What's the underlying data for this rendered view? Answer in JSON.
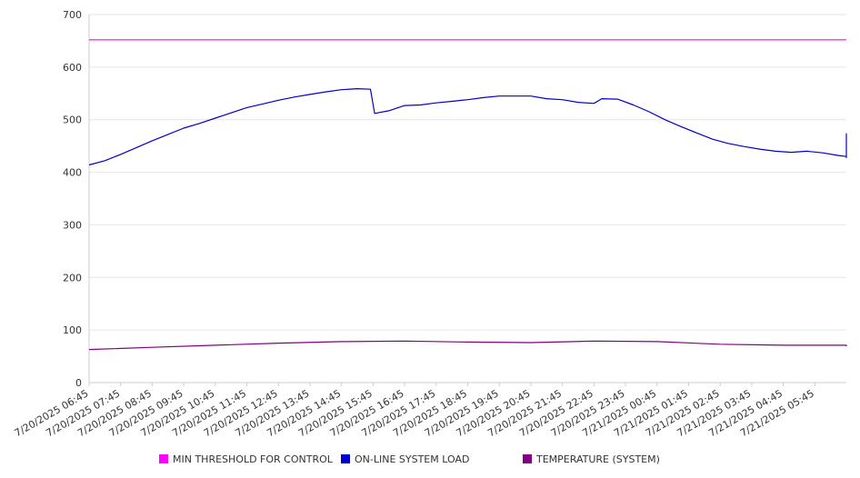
{
  "chart_data": {
    "type": "line",
    "title": "",
    "xlabel": "",
    "ylabel": "",
    "ylim": [
      0,
      700
    ],
    "yticks": [
      0,
      100,
      200,
      300,
      400,
      500,
      600,
      700
    ],
    "grid": true,
    "legend_position": "bottom",
    "x": [
      "7/20/2025 06:45",
      "7/20/2025 07:45",
      "7/20/2025 08:45",
      "7/20/2025 09:45",
      "7/20/2025 10:45",
      "7/20/2025 11:45",
      "7/20/2025 12:45",
      "7/20/2025 13:45",
      "7/20/2025 14:45",
      "7/20/2025 15:45",
      "7/20/2025 16:45",
      "7/20/2025 17:45",
      "7/20/2025 18:45",
      "7/20/2025 19:45",
      "7/20/2025 20:45",
      "7/20/2025 21:45",
      "7/20/2025 22:45",
      "7/20/2025 23:45",
      "7/21/2025 00:45",
      "7/21/2025 01:45",
      "7/21/2025 02:45",
      "7/21/2025 03:45",
      "7/21/2025 04:45",
      "7/21/2025 05:45"
    ],
    "x_end": "7/21/2025 06:45",
    "series": [
      {
        "name": "MIN THRESHOLD FOR CONTROL",
        "color": "#ff00ff",
        "points": [
          [
            "7/20/2025 06:45",
            652
          ],
          [
            "7/21/2025 06:45",
            652
          ]
        ]
      },
      {
        "name": "ON-LINE SYSTEM LOAD",
        "color": "#0000cc",
        "points": [
          [
            "7/20/2025 06:45",
            414
          ],
          [
            "7/20/2025 07:15",
            422
          ],
          [
            "7/20/2025 07:45",
            434
          ],
          [
            "7/20/2025 08:15",
            447
          ],
          [
            "7/20/2025 08:45",
            460
          ],
          [
            "7/20/2025 09:15",
            472
          ],
          [
            "7/20/2025 09:45",
            484
          ],
          [
            "7/20/2025 10:15",
            493
          ],
          [
            "7/20/2025 10:45",
            503
          ],
          [
            "7/20/2025 11:15",
            513
          ],
          [
            "7/20/2025 11:45",
            523
          ],
          [
            "7/20/2025 12:15",
            530
          ],
          [
            "7/20/2025 12:45",
            537
          ],
          [
            "7/20/2025 13:15",
            543
          ],
          [
            "7/20/2025 13:45",
            548
          ],
          [
            "7/20/2025 14:15",
            553
          ],
          [
            "7/20/2025 14:45",
            557
          ],
          [
            "7/20/2025 15:15",
            559
          ],
          [
            "7/20/2025 15:40",
            558
          ],
          [
            "7/20/2025 15:48",
            512
          ],
          [
            "7/20/2025 16:15",
            517
          ],
          [
            "7/20/2025 16:45",
            527
          ],
          [
            "7/20/2025 17:15",
            528
          ],
          [
            "7/20/2025 17:45",
            532
          ],
          [
            "7/20/2025 18:15",
            535
          ],
          [
            "7/20/2025 18:45",
            538
          ],
          [
            "7/20/2025 19:15",
            542
          ],
          [
            "7/20/2025 19:45",
            545
          ],
          [
            "7/20/2025 20:15",
            545
          ],
          [
            "7/20/2025 20:45",
            545
          ],
          [
            "7/20/2025 21:15",
            540
          ],
          [
            "7/20/2025 21:45",
            538
          ],
          [
            "7/20/2025 22:15",
            533
          ],
          [
            "7/20/2025 22:45",
            531
          ],
          [
            "7/20/2025 23:00",
            540
          ],
          [
            "7/20/2025 23:30",
            539
          ],
          [
            "7/21/2025 00:00",
            528
          ],
          [
            "7/21/2025 00:30",
            515
          ],
          [
            "7/21/2025 01:00",
            500
          ],
          [
            "7/21/2025 01:30",
            487
          ],
          [
            "7/21/2025 02:00",
            475
          ],
          [
            "7/21/2025 02:30",
            463
          ],
          [
            "7/21/2025 03:00",
            455
          ],
          [
            "7/21/2025 03:30",
            449
          ],
          [
            "7/21/2025 04:00",
            444
          ],
          [
            "7/21/2025 04:30",
            440
          ],
          [
            "7/21/2025 05:00",
            438
          ],
          [
            "7/21/2025 05:30",
            440
          ],
          [
            "7/21/2025 06:00",
            437
          ],
          [
            "7/21/2025 06:30",
            432
          ],
          [
            "7/21/2025 07:00",
            430
          ],
          [
            "7/21/2025 07:30",
            428
          ],
          [
            "7/21/2025 08:00",
            428
          ],
          [
            "7/21/2025 08:30",
            430
          ],
          [
            "7/21/2025 09:00",
            433
          ],
          [
            "7/21/2025 09:30",
            440
          ],
          [
            "7/21/2025 10:00",
            448
          ],
          [
            "7/21/2025 10:30",
            460
          ],
          [
            "7/21/2025 11:00",
            468
          ],
          [
            "7/21/2025 11:15",
            474
          ]
        ]
      },
      {
        "name": "TEMPERATURE (SYSTEM)",
        "color": "#800080",
        "points": [
          [
            "7/20/2025 06:45",
            63
          ],
          [
            "7/20/2025 08:45",
            67
          ],
          [
            "7/20/2025 10:45",
            71
          ],
          [
            "7/20/2025 12:45",
            75
          ],
          [
            "7/20/2025 14:45",
            78
          ],
          [
            "7/20/2025 16:45",
            79
          ],
          [
            "7/20/2025 18:45",
            77
          ],
          [
            "7/20/2025 20:45",
            76
          ],
          [
            "7/20/2025 22:45",
            79
          ],
          [
            "7/21/2025 00:45",
            78
          ],
          [
            "7/21/2025 02:45",
            73
          ],
          [
            "7/21/2025 04:45",
            71
          ],
          [
            "7/21/2025 06:45",
            71
          ],
          [
            "7/21/2025 08:45",
            70
          ],
          [
            "7/21/2025 11:15",
            69
          ]
        ]
      }
    ]
  }
}
